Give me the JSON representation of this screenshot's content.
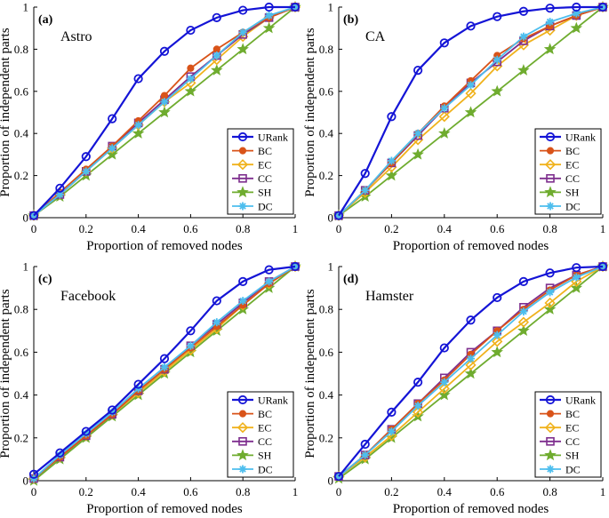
{
  "figure": {
    "legend_labels": [
      "URank",
      "BC",
      "EC",
      "CC",
      "SH",
      "DC"
    ],
    "colors": {
      "URank": "#1414d6",
      "BC": "#d95319",
      "EC": "#f0b21c",
      "CC": "#7e2f8e",
      "SH": "#6fac2f",
      "DC": "#4dbeee"
    }
  },
  "chart_data": [
    {
      "type": "line",
      "panel_tag": "(a)",
      "title": "Astro",
      "xlabel": "Proportion of removed nodes",
      "ylabel": "Proportion of independent parts",
      "xlim": [
        0,
        1
      ],
      "ylim": [
        0,
        1
      ],
      "xticks": [
        "0",
        "0.2",
        "0.4",
        "0.6",
        "0.8",
        "1"
      ],
      "yticks": [
        "0",
        "0.2",
        "0.4",
        "0.6",
        "0.8",
        "1"
      ],
      "legend_position": "bottom-right",
      "x": [
        0,
        0.1,
        0.2,
        0.3,
        0.4,
        0.5,
        0.6,
        0.7,
        0.8,
        0.9,
        1.0
      ],
      "series": [
        {
          "name": "URank",
          "values": [
            0.01,
            0.14,
            0.29,
            0.47,
            0.66,
            0.79,
            0.89,
            0.95,
            0.985,
            1.0,
            1.0
          ]
        },
        {
          "name": "BC",
          "values": [
            0.01,
            0.12,
            0.23,
            0.34,
            0.46,
            0.58,
            0.71,
            0.8,
            0.88,
            0.95,
            1.0
          ]
        },
        {
          "name": "EC",
          "values": [
            0.01,
            0.11,
            0.22,
            0.33,
            0.44,
            0.55,
            0.64,
            0.75,
            0.86,
            0.95,
            1.0
          ]
        },
        {
          "name": "CC",
          "values": [
            0.01,
            0.11,
            0.22,
            0.34,
            0.45,
            0.56,
            0.67,
            0.77,
            0.87,
            0.95,
            1.0
          ]
        },
        {
          "name": "SH",
          "values": [
            0.01,
            0.1,
            0.2,
            0.3,
            0.4,
            0.5,
            0.6,
            0.7,
            0.8,
            0.9,
            1.0
          ]
        },
        {
          "name": "DC",
          "values": [
            0.01,
            0.11,
            0.22,
            0.33,
            0.44,
            0.55,
            0.66,
            0.77,
            0.88,
            0.96,
            1.0
          ]
        }
      ]
    },
    {
      "type": "line",
      "panel_tag": "(b)",
      "title": "CA",
      "xlabel": "Proportion of removed nodes",
      "ylabel": "Proportion of independent parts",
      "xlim": [
        0,
        1
      ],
      "ylim": [
        0,
        1
      ],
      "xticks": [
        "0",
        "0.2",
        "0.4",
        "0.6",
        "0.8",
        "1"
      ],
      "yticks": [
        "0",
        "0.2",
        "0.4",
        "0.6",
        "0.8",
        "1"
      ],
      "legend_position": "bottom-right",
      "x": [
        0,
        0.1,
        0.2,
        0.3,
        0.4,
        0.5,
        0.6,
        0.7,
        0.8,
        0.9,
        1.0
      ],
      "series": [
        {
          "name": "URank",
          "values": [
            0.01,
            0.21,
            0.48,
            0.7,
            0.83,
            0.91,
            0.955,
            0.98,
            0.995,
            1.0,
            1.0
          ]
        },
        {
          "name": "BC",
          "values": [
            0.01,
            0.13,
            0.26,
            0.4,
            0.53,
            0.65,
            0.77,
            0.85,
            0.91,
            0.96,
            1.0
          ]
        },
        {
          "name": "EC",
          "values": [
            0.01,
            0.12,
            0.24,
            0.37,
            0.48,
            0.59,
            0.72,
            0.82,
            0.89,
            0.96,
            1.0
          ]
        },
        {
          "name": "CC",
          "values": [
            0.01,
            0.13,
            0.26,
            0.39,
            0.52,
            0.64,
            0.74,
            0.84,
            0.91,
            0.96,
            1.0
          ]
        },
        {
          "name": "SH",
          "values": [
            0.01,
            0.1,
            0.2,
            0.3,
            0.4,
            0.5,
            0.6,
            0.7,
            0.8,
            0.9,
            1.0
          ]
        },
        {
          "name": "DC",
          "values": [
            0.01,
            0.13,
            0.27,
            0.4,
            0.52,
            0.63,
            0.75,
            0.86,
            0.93,
            0.97,
            1.0
          ]
        }
      ]
    },
    {
      "type": "line",
      "panel_tag": "(c)",
      "title": "Facebook",
      "xlabel": "Proportion of removed nodes",
      "ylabel": "Proportion of independent parts",
      "xlim": [
        0,
        1
      ],
      "ylim": [
        0,
        1
      ],
      "xticks": [
        "0",
        "0.2",
        "0.4",
        "0.6",
        "0.8",
        "1"
      ],
      "yticks": [
        "0",
        "0.2",
        "0.4",
        "0.6",
        "0.8",
        "1"
      ],
      "legend_position": "bottom-right",
      "x": [
        0,
        0.1,
        0.2,
        0.3,
        0.4,
        0.5,
        0.6,
        0.7,
        0.8,
        0.9,
        1.0
      ],
      "series": [
        {
          "name": "URank",
          "values": [
            0.03,
            0.13,
            0.23,
            0.33,
            0.45,
            0.57,
            0.7,
            0.84,
            0.93,
            0.985,
            1.0
          ]
        },
        {
          "name": "BC",
          "values": [
            0.01,
            0.11,
            0.21,
            0.31,
            0.42,
            0.52,
            0.62,
            0.72,
            0.82,
            0.92,
            1.0
          ]
        },
        {
          "name": "EC",
          "values": [
            0.01,
            0.11,
            0.21,
            0.31,
            0.41,
            0.51,
            0.61,
            0.71,
            0.82,
            0.92,
            1.0
          ]
        },
        {
          "name": "CC",
          "values": [
            0.01,
            0.11,
            0.21,
            0.31,
            0.42,
            0.52,
            0.63,
            0.73,
            0.83,
            0.93,
            1.0
          ]
        },
        {
          "name": "SH",
          "values": [
            0.0,
            0.1,
            0.2,
            0.3,
            0.4,
            0.5,
            0.6,
            0.7,
            0.8,
            0.9,
            1.0
          ]
        },
        {
          "name": "DC",
          "values": [
            0.01,
            0.12,
            0.22,
            0.32,
            0.43,
            0.53,
            0.63,
            0.74,
            0.84,
            0.93,
            1.0
          ]
        }
      ]
    },
    {
      "type": "line",
      "panel_tag": "(d)",
      "title": "Hamster",
      "xlabel": "Proportion of removed nodes",
      "ylabel": "Proportion of independent parts",
      "xlim": [
        0,
        1
      ],
      "ylim": [
        0,
        1
      ],
      "xticks": [
        "0",
        "0.2",
        "0.4",
        "0.6",
        "0.8",
        "1"
      ],
      "yticks": [
        "0",
        "0.2",
        "0.4",
        "0.6",
        "0.8",
        "1"
      ],
      "legend_position": "bottom-right",
      "x": [
        0,
        0.1,
        0.2,
        0.3,
        0.4,
        0.5,
        0.6,
        0.7,
        0.8,
        0.9,
        1.0
      ],
      "series": [
        {
          "name": "URank",
          "values": [
            0.02,
            0.17,
            0.32,
            0.46,
            0.62,
            0.75,
            0.855,
            0.93,
            0.97,
            0.995,
            1.0
          ]
        },
        {
          "name": "BC",
          "values": [
            0.02,
            0.12,
            0.24,
            0.36,
            0.47,
            0.59,
            0.7,
            0.8,
            0.89,
            0.96,
            1.0
          ]
        },
        {
          "name": "EC",
          "values": [
            0.02,
            0.11,
            0.21,
            0.32,
            0.43,
            0.54,
            0.65,
            0.74,
            0.83,
            0.93,
            1.0
          ]
        },
        {
          "name": "CC",
          "values": [
            0.02,
            0.12,
            0.24,
            0.36,
            0.48,
            0.6,
            0.7,
            0.81,
            0.9,
            0.96,
            1.0
          ]
        },
        {
          "name": "SH",
          "values": [
            0.01,
            0.1,
            0.2,
            0.3,
            0.4,
            0.5,
            0.6,
            0.7,
            0.8,
            0.9,
            1.0
          ]
        },
        {
          "name": "DC",
          "values": [
            0.02,
            0.12,
            0.23,
            0.35,
            0.46,
            0.57,
            0.68,
            0.79,
            0.88,
            0.95,
            1.0
          ]
        }
      ]
    }
  ]
}
